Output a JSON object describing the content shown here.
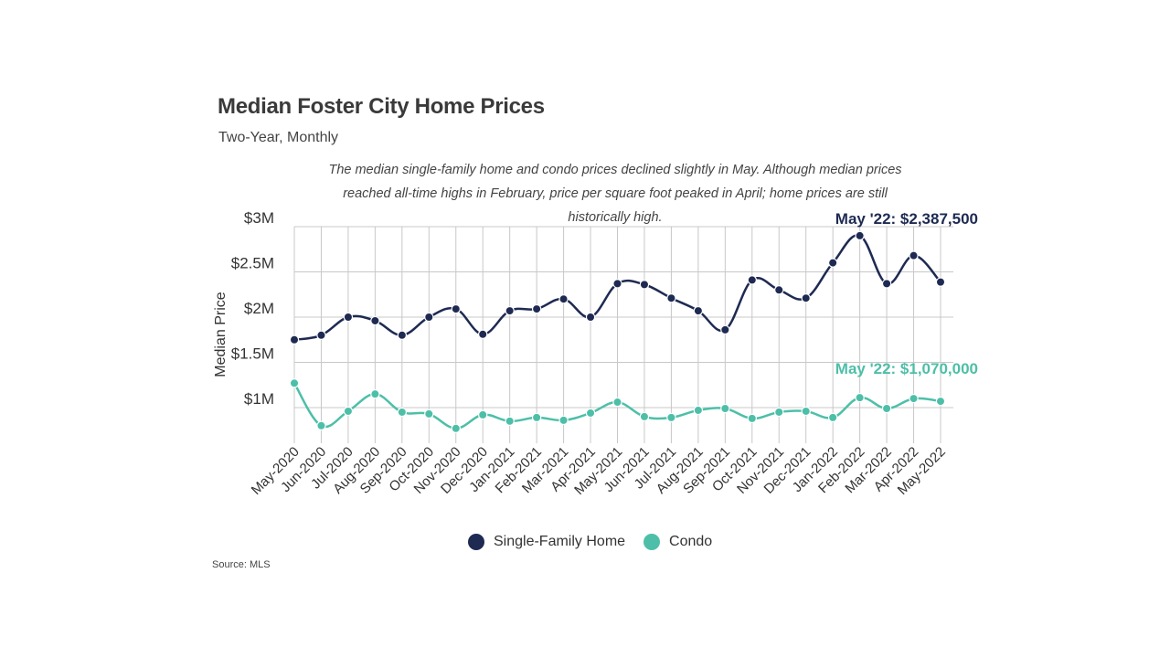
{
  "header": {
    "title": "Median Foster City Home Prices",
    "subtitle": "Two-Year, Monthly",
    "note": "The median single-family home and condo prices declined slightly in May. Although median prices reached all-time highs in February, price per square foot peaked in April; home prices are still historically high."
  },
  "source": "Source:  MLS",
  "colors": {
    "sfh": "#1e2a52",
    "condo": "#4dbfa8",
    "grid": "#c8c8c8"
  },
  "chart_data": {
    "type": "line",
    "ylabel": "Median Price",
    "ylim": [
      700000,
      3000000
    ],
    "yticks": [
      {
        "value": 1000000,
        "label": "$1M"
      },
      {
        "value": 1500000,
        "label": "$1.5M"
      },
      {
        "value": 2000000,
        "label": "$2M"
      },
      {
        "value": 2500000,
        "label": "$2.5M"
      },
      {
        "value": 3000000,
        "label": "$3M"
      }
    ],
    "categories": [
      "May-2020",
      "Jun-2020",
      "Jul-2020",
      "Aug-2020",
      "Sep-2020",
      "Oct-2020",
      "Nov-2020",
      "Dec-2020",
      "Jan-2021",
      "Feb-2021",
      "Mar-2021",
      "Apr-2021",
      "May-2021",
      "Jun-2021",
      "Jul-2021",
      "Aug-2021",
      "Sep-2021",
      "Oct-2021",
      "Nov-2021",
      "Dec-2021",
      "Jan-2022",
      "Feb-2022",
      "Mar-2022",
      "Apr-2022",
      "May-2022"
    ],
    "series": [
      {
        "name": "Single-Family Home",
        "values": [
          1750000,
          1800000,
          2000000,
          1960000,
          1800000,
          2000000,
          2090000,
          1810000,
          2070000,
          2090000,
          2200000,
          2000000,
          2370000,
          2360000,
          2210000,
          2070000,
          1860000,
          2410000,
          2300000,
          2210000,
          2600000,
          2900000,
          2370000,
          2680000,
          2387500
        ]
      },
      {
        "name": "Condo",
        "values": [
          1270000,
          800000,
          960000,
          1150000,
          950000,
          930000,
          770000,
          920000,
          850000,
          890000,
          860000,
          940000,
          1060000,
          900000,
          890000,
          970000,
          990000,
          880000,
          950000,
          960000,
          890000,
          1110000,
          990000,
          1100000,
          1070000
        ]
      }
    ],
    "annotations": [
      {
        "series": "Single-Family Home",
        "text": "May '22:  $2,387,500"
      },
      {
        "series": "Condo",
        "text": "May '22:  $1,070,000"
      }
    ],
    "legend": "bottom-center",
    "grid": true
  }
}
